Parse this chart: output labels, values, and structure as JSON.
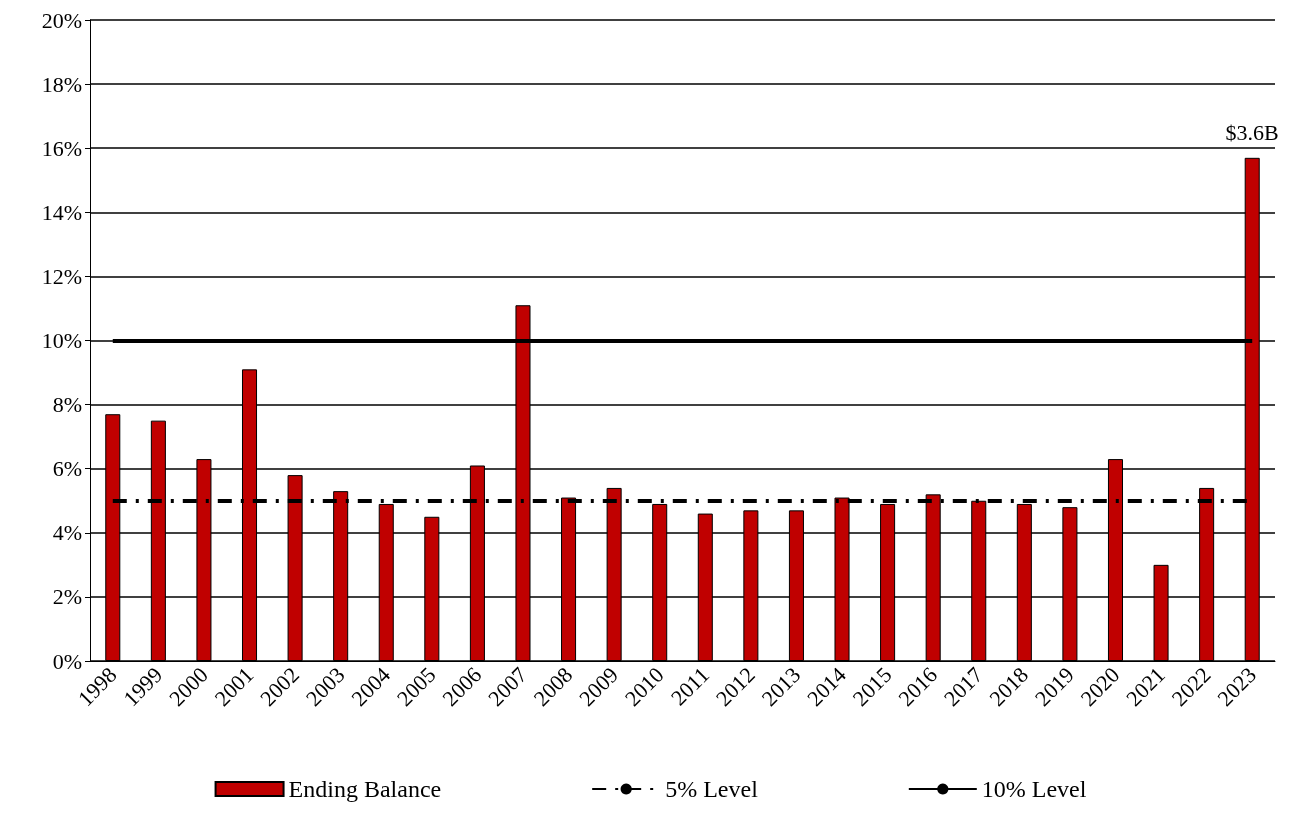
{
  "chart_data": {
    "type": "bar",
    "categories": [
      "1998",
      "1999",
      "2000",
      "2001",
      "2002",
      "2003",
      "2004",
      "2005",
      "2006",
      "2007",
      "2008",
      "2009",
      "2010",
      "2011",
      "2012",
      "2013",
      "2014",
      "2015",
      "2016",
      "2017",
      "2018",
      "2019",
      "2020",
      "2021",
      "2022",
      "2023"
    ],
    "series": [
      {
        "name": "Ending Balance",
        "color": "#c00000",
        "values": [
          7.7,
          7.5,
          6.3,
          9.1,
          5.8,
          5.3,
          4.9,
          4.5,
          6.1,
          11.1,
          5.1,
          5.4,
          4.9,
          4.6,
          4.7,
          4.7,
          5.1,
          4.9,
          5.2,
          5.0,
          4.9,
          4.8,
          6.3,
          3.0,
          5.4,
          15.7
        ]
      }
    ],
    "ylim": [
      0,
      20
    ],
    "yticks": [
      {
        "value": 0,
        "label": "0%"
      },
      {
        "value": 2,
        "label": "2%"
      },
      {
        "value": 4,
        "label": "4%"
      },
      {
        "value": 6,
        "label": "6%"
      },
      {
        "value": 8,
        "label": "8%"
      },
      {
        "value": 10,
        "label": "10%"
      },
      {
        "value": 12,
        "label": "12%"
      },
      {
        "value": 14,
        "label": "14%"
      },
      {
        "value": 16,
        "label": "16%"
      },
      {
        "value": 18,
        "label": "18%"
      },
      {
        "value": 20,
        "label": "20%"
      }
    ],
    "ref_lines": [
      {
        "axis": "y",
        "value": 5,
        "label": "5% Level",
        "color": "#000000",
        "line_style": "dashed"
      },
      {
        "axis": "y",
        "value": 10,
        "label": "10% Level",
        "color": "#000000",
        "line_style": "solid"
      }
    ],
    "annotations": [
      {
        "text": "$3.6B",
        "x": "2023",
        "y": 15.7
      }
    ],
    "grid": "y",
    "legend": "bottom"
  }
}
